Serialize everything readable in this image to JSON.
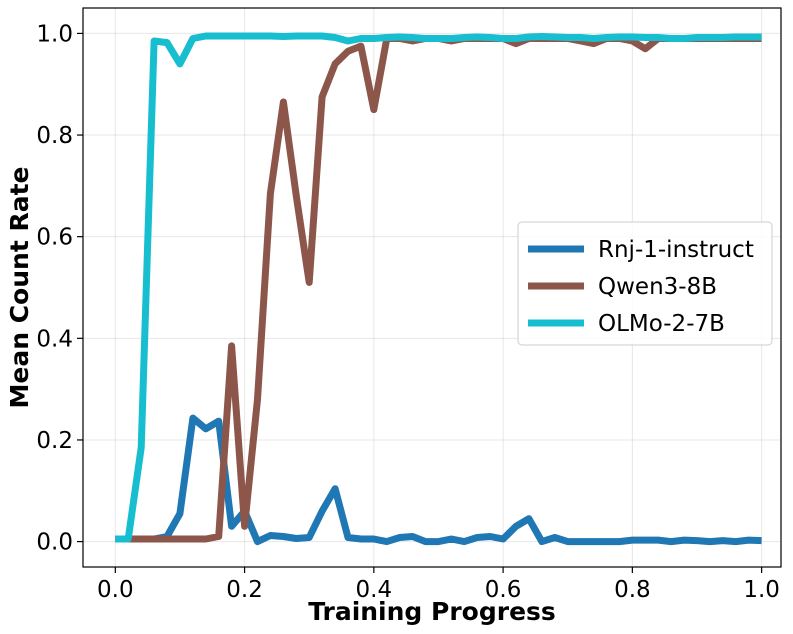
{
  "chart_data": {
    "type": "line",
    "title": "",
    "xlabel": "Training Progress",
    "ylabel": "Mean Count Rate",
    "xlim": [
      -0.05,
      1.03
    ],
    "ylim": [
      -0.05,
      1.05
    ],
    "xticks": [
      0.0,
      0.2,
      0.4,
      0.6,
      0.8,
      1.0
    ],
    "xtick_labels": [
      "0.0",
      "0.2",
      "0.4",
      "0.6",
      "0.8",
      "1.0"
    ],
    "yticks": [
      0.0,
      0.2,
      0.4,
      0.6,
      0.8,
      1.0
    ],
    "ytick_labels": [
      "0.0",
      "0.2",
      "0.4",
      "0.6",
      "0.8",
      "1.0"
    ],
    "grid": true,
    "legend_position": "center-right",
    "series": [
      {
        "name": "Rnj-1-instruct",
        "color": "#1f77b4",
        "x": [
          0.0,
          0.02,
          0.04,
          0.06,
          0.08,
          0.1,
          0.12,
          0.14,
          0.16,
          0.18,
          0.2,
          0.22,
          0.24,
          0.26,
          0.28,
          0.3,
          0.32,
          0.34,
          0.36,
          0.38,
          0.4,
          0.42,
          0.44,
          0.46,
          0.48,
          0.5,
          0.52,
          0.54,
          0.56,
          0.58,
          0.6,
          0.62,
          0.64,
          0.66,
          0.68,
          0.7,
          0.72,
          0.74,
          0.76,
          0.78,
          0.8,
          0.82,
          0.84,
          0.86,
          0.88,
          0.9,
          0.92,
          0.94,
          0.96,
          0.98,
          1.0
        ],
        "y": [
          0.005,
          0.005,
          0.005,
          0.005,
          0.01,
          0.055,
          0.243,
          0.222,
          0.237,
          0.03,
          0.06,
          0.0,
          0.012,
          0.01,
          0.006,
          0.008,
          0.06,
          0.104,
          0.008,
          0.005,
          0.005,
          0.0,
          0.008,
          0.01,
          0.0,
          0.0,
          0.005,
          0.0,
          0.008,
          0.01,
          0.005,
          0.03,
          0.045,
          0.0,
          0.008,
          0.0,
          0.0,
          0.0,
          0.0,
          0.0,
          0.003,
          0.003,
          0.003,
          0.0,
          0.003,
          0.002,
          0.0,
          0.002,
          0.0,
          0.003,
          0.002
        ]
      },
      {
        "name": "Qwen3-8B",
        "color": "#8c564b",
        "x": [
          0.0,
          0.02,
          0.04,
          0.06,
          0.08,
          0.1,
          0.12,
          0.14,
          0.16,
          0.18,
          0.2,
          0.22,
          0.24,
          0.26,
          0.28,
          0.3,
          0.32,
          0.34,
          0.36,
          0.38,
          0.4,
          0.42,
          0.44,
          0.46,
          0.48,
          0.5,
          0.52,
          0.54,
          0.56,
          0.58,
          0.6,
          0.62,
          0.64,
          0.66,
          0.68,
          0.7,
          0.72,
          0.74,
          0.76,
          0.78,
          0.8,
          0.82,
          0.84,
          0.86,
          0.88,
          0.9,
          0.92,
          0.94,
          0.96,
          0.98,
          1.0
        ],
        "y": [
          0.005,
          0.005,
          0.005,
          0.005,
          0.005,
          0.005,
          0.005,
          0.005,
          0.01,
          0.385,
          0.03,
          0.28,
          0.685,
          0.865,
          0.68,
          0.51,
          0.875,
          0.94,
          0.965,
          0.975,
          0.85,
          0.99,
          0.99,
          0.985,
          0.99,
          0.99,
          0.985,
          0.99,
          0.99,
          0.99,
          0.99,
          0.98,
          0.99,
          0.99,
          0.99,
          0.99,
          0.985,
          0.98,
          0.99,
          0.99,
          0.985,
          0.97,
          0.99,
          0.99,
          0.99,
          0.99,
          0.99,
          0.99,
          0.99,
          0.99,
          0.99
        ]
      },
      {
        "name": "OLMo-2-7B",
        "color": "#17becf",
        "x": [
          0.0,
          0.02,
          0.04,
          0.06,
          0.08,
          0.1,
          0.12,
          0.14,
          0.16,
          0.18,
          0.2,
          0.22,
          0.24,
          0.26,
          0.28,
          0.3,
          0.32,
          0.34,
          0.36,
          0.38,
          0.4,
          0.42,
          0.44,
          0.46,
          0.48,
          0.5,
          0.52,
          0.54,
          0.56,
          0.58,
          0.6,
          0.62,
          0.64,
          0.66,
          0.68,
          0.7,
          0.72,
          0.74,
          0.76,
          0.78,
          0.8,
          0.82,
          0.84,
          0.86,
          0.88,
          0.9,
          0.92,
          0.94,
          0.96,
          0.98,
          1.0
        ],
        "y": [
          0.005,
          0.005,
          0.185,
          0.985,
          0.982,
          0.94,
          0.99,
          0.995,
          0.995,
          0.995,
          0.995,
          0.995,
          0.995,
          0.994,
          0.995,
          0.995,
          0.995,
          0.992,
          0.985,
          0.99,
          0.99,
          0.992,
          0.993,
          0.992,
          0.99,
          0.99,
          0.99,
          0.992,
          0.993,
          0.992,
          0.99,
          0.99,
          0.993,
          0.994,
          0.993,
          0.992,
          0.992,
          0.99,
          0.992,
          0.993,
          0.993,
          0.992,
          0.992,
          0.99,
          0.99,
          0.992,
          0.992,
          0.992,
          0.993,
          0.993,
          0.993
        ]
      }
    ]
  }
}
